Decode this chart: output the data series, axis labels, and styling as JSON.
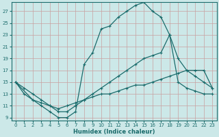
{
  "xlabel": "Humidex (Indice chaleur)",
  "bg_color": "#cce8e8",
  "grid_color": "#b0d4d4",
  "line_color": "#1a6b6b",
  "xlim": [
    -0.5,
    23.5
  ],
  "ylim": [
    8.5,
    28.5
  ],
  "xticks": [
    0,
    1,
    2,
    3,
    4,
    5,
    6,
    7,
    8,
    9,
    10,
    11,
    12,
    13,
    14,
    15,
    16,
    17,
    18,
    19,
    20,
    21,
    22,
    23
  ],
  "yticks": [
    9,
    11,
    13,
    15,
    17,
    19,
    21,
    23,
    25,
    27
  ],
  "line1_x": [
    0,
    1,
    2,
    3,
    4,
    5,
    6,
    7,
    8,
    9,
    10,
    11,
    12,
    13,
    14,
    15,
    16,
    17,
    18,
    19,
    20,
    21,
    22,
    23
  ],
  "line1_y": [
    15,
    13,
    12,
    11,
    10,
    9,
    9,
    10,
    18,
    20,
    24,
    24.5,
    26,
    27,
    28,
    28.5,
    27,
    26,
    23,
    15,
    14,
    13.5,
    13,
    13
  ],
  "line2_x": [
    0,
    1,
    2,
    3,
    4,
    5,
    6,
    7,
    8,
    9,
    10,
    11,
    12,
    13,
    14,
    15,
    16,
    17,
    18,
    19,
    20,
    21,
    22,
    23
  ],
  "line2_y": [
    15,
    14,
    13,
    12,
    11,
    10,
    10,
    11,
    12,
    13,
    14,
    15,
    16,
    17,
    18,
    19,
    19.5,
    20,
    23,
    19,
    17,
    16,
    15,
    14
  ],
  "line3_x": [
    0,
    2,
    3,
    4,
    5,
    6,
    7,
    8,
    9,
    10,
    11,
    12,
    13,
    14,
    15,
    16,
    17,
    18,
    19,
    20,
    21,
    22,
    23
  ],
  "line3_y": [
    15,
    12,
    11.5,
    11,
    10.5,
    11,
    11.5,
    12,
    12.5,
    13,
    13,
    13.5,
    14,
    14.5,
    14.5,
    15,
    15.5,
    16,
    16.5,
    17,
    17,
    17,
    14
  ]
}
